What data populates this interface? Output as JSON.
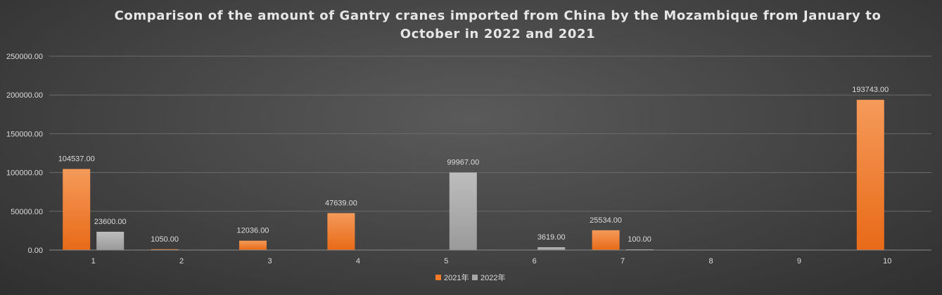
{
  "chart_data": {
    "type": "bar",
    "title": "Comparison of the amount of Gantry cranes imported from China by the Mozambique from January to October in 2022 and 2021",
    "xlabel": "",
    "ylabel": "",
    "categories": [
      "1",
      "2",
      "3",
      "4",
      "5",
      "6",
      "7",
      "8",
      "9",
      "10"
    ],
    "series": [
      {
        "name": "2021年",
        "color": "#f07a2a",
        "values": [
          104537.0,
          1050.0,
          12036.0,
          47639.0,
          null,
          null,
          25534.0,
          null,
          null,
          193743.0
        ],
        "labels": [
          "104537.00",
          "1050.00",
          "12036.00",
          "47639.00",
          "",
          "",
          "25534.00",
          "",
          "",
          "193743.00"
        ]
      },
      {
        "name": "2022年",
        "color": "#a6a6a6",
        "values": [
          23600.0,
          null,
          null,
          null,
          99967.0,
          3619.0,
          100.0,
          null,
          null,
          null
        ],
        "labels": [
          "23600.00",
          "",
          "",
          "",
          "99967.00",
          "3619.00",
          "100.00",
          "",
          "",
          ""
        ]
      }
    ],
    "ylim": [
      0,
      250000
    ],
    "yticks": [
      "0.00",
      "50000.00",
      "100000.00",
      "150000.00",
      "200000.00",
      "250000.00"
    ],
    "grid": true,
    "legend_position": "bottom"
  }
}
